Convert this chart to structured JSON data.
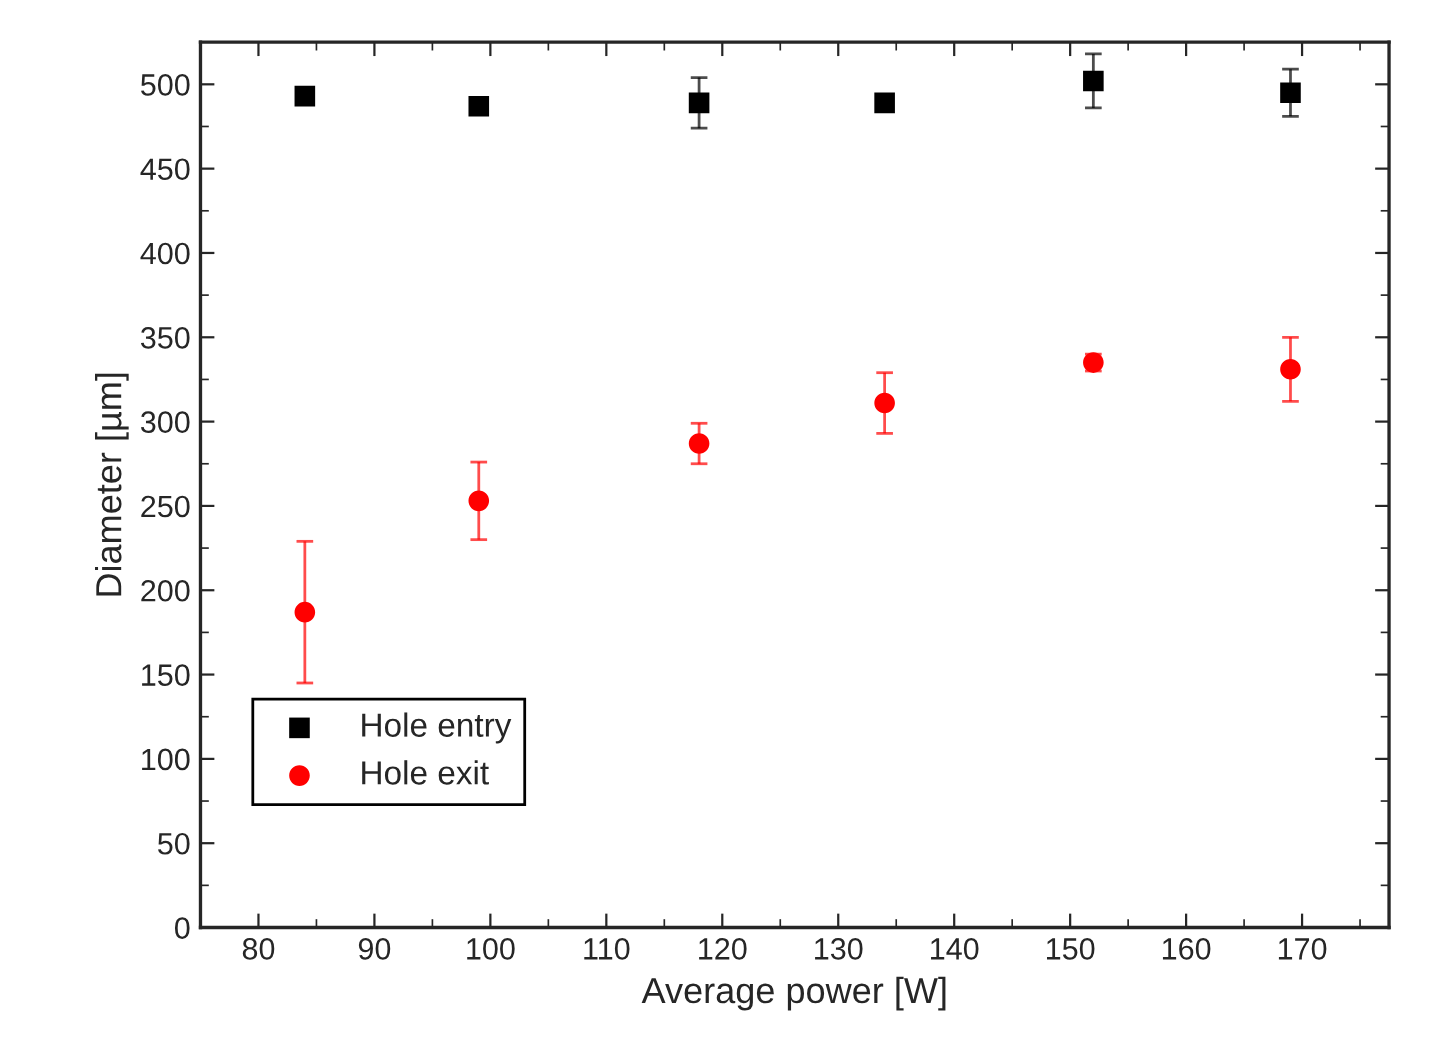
{
  "chart_data": {
    "type": "scatter",
    "xlabel": "Average power [W]",
    "ylabel": "Diameter [µm]",
    "x": [
      84,
      99,
      118,
      134,
      152,
      169
    ],
    "series": [
      {
        "name": "Hole entry",
        "color": "#000000",
        "marker": "square",
        "values": [
          493,
          487,
          489,
          489,
          502,
          495
        ],
        "errors": [
          null,
          null,
          15,
          null,
          16,
          14
        ]
      },
      {
        "name": "Hole exit",
        "color": "#ff0000",
        "marker": "circle",
        "values": [
          187,
          253,
          287,
          311,
          335,
          331
        ],
        "errors": [
          42,
          23,
          12,
          18,
          5,
          19
        ]
      }
    ],
    "xlim": [
      75,
      177.5
    ],
    "xticks": [
      80,
      90,
      100,
      110,
      120,
      130,
      140,
      150,
      160,
      170
    ],
    "ylim": [
      0,
      525
    ],
    "yticks": [
      0,
      50,
      100,
      150,
      200,
      250,
      300,
      350,
      400,
      450,
      500
    ],
    "grid": false,
    "legend": "bottom left"
  }
}
